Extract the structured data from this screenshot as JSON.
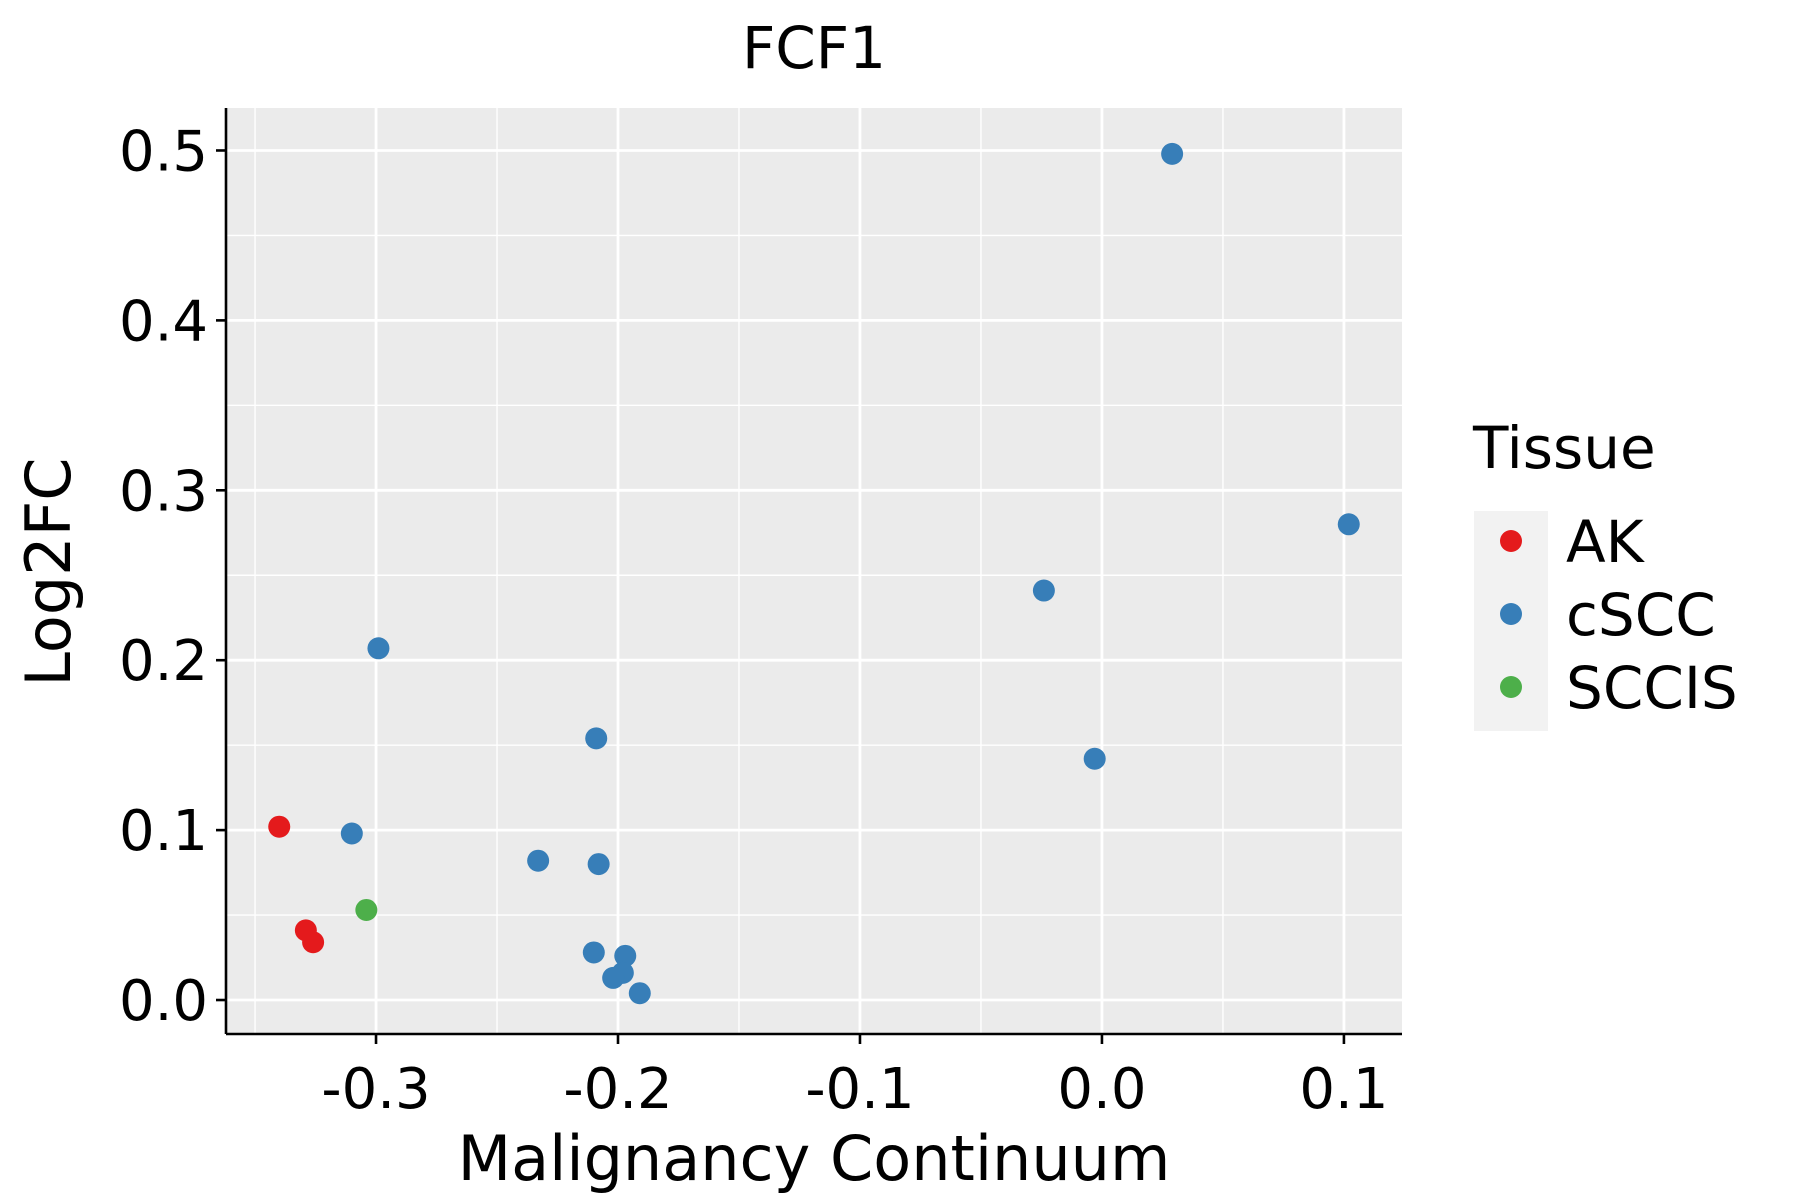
{
  "chart_data": {
    "type": "scatter",
    "title": "FCF1",
    "xlabel": "Malignancy Continuum",
    "ylabel": "Log2FC",
    "xlim": [
      -0.362,
      0.124
    ],
    "ylim": [
      -0.02,
      0.525
    ],
    "x_ticks": [
      -0.3,
      -0.2,
      -0.1,
      0.0,
      0.1
    ],
    "x_tick_labels": [
      "-0.3",
      "-0.2",
      "-0.1",
      "0.0",
      "0.1"
    ],
    "y_ticks": [
      0.0,
      0.1,
      0.2,
      0.3,
      0.4,
      0.5
    ],
    "y_tick_labels": [
      "0.0",
      "0.1",
      "0.2",
      "0.3",
      "0.4",
      "0.5"
    ],
    "grid": true,
    "legend": {
      "title": "Tissue",
      "position": "right",
      "entries": [
        {
          "label": "AK",
          "color": "#E41A1C"
        },
        {
          "label": "cSCC",
          "color": "#377EB8"
        },
        {
          "label": "SCCIS",
          "color": "#4DAF4A"
        }
      ]
    },
    "series": [
      {
        "name": "AK",
        "color": "#E41A1C",
        "points": [
          {
            "x": -0.34,
            "y": 0.102
          },
          {
            "x": -0.329,
            "y": 0.041
          },
          {
            "x": -0.326,
            "y": 0.034
          }
        ]
      },
      {
        "name": "cSCC",
        "color": "#377EB8",
        "points": [
          {
            "x": -0.299,
            "y": 0.207
          },
          {
            "x": -0.31,
            "y": 0.098
          },
          {
            "x": -0.233,
            "y": 0.082
          },
          {
            "x": -0.209,
            "y": 0.154
          },
          {
            "x": -0.208,
            "y": 0.08
          },
          {
            "x": -0.21,
            "y": 0.028
          },
          {
            "x": -0.197,
            "y": 0.026
          },
          {
            "x": -0.198,
            "y": 0.016
          },
          {
            "x": -0.202,
            "y": 0.013
          },
          {
            "x": -0.191,
            "y": 0.004
          },
          {
            "x": -0.024,
            "y": 0.241
          },
          {
            "x": -0.003,
            "y": 0.142
          },
          {
            "x": 0.029,
            "y": 0.498
          },
          {
            "x": 0.102,
            "y": 0.28
          }
        ]
      },
      {
        "name": "SCCIS",
        "color": "#4DAF4A",
        "points": [
          {
            "x": -0.304,
            "y": 0.053
          }
        ]
      }
    ]
  }
}
